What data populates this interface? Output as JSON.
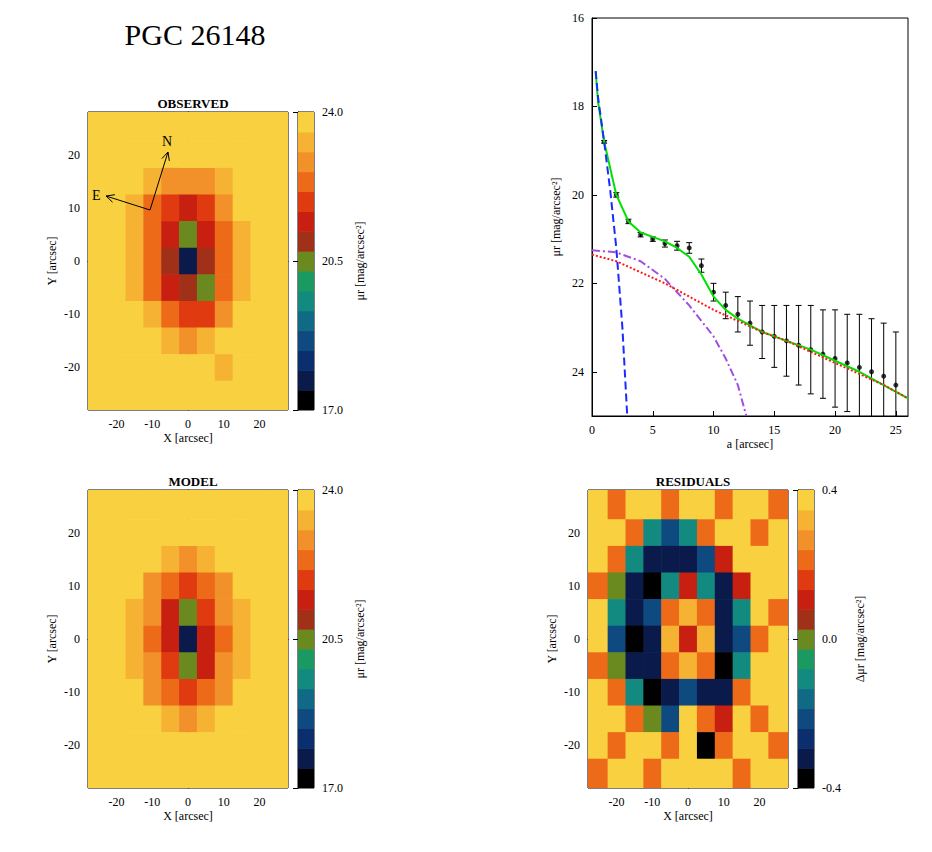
{
  "title": "PGC 26148",
  "chart_data": [
    {
      "type": "heatmap",
      "title": "OBSERVED",
      "xlabel": "X [arcsec]",
      "ylabel": "Y [arcsec]",
      "xlim": [
        -28,
        28
      ],
      "ylim": [
        -28,
        28
      ],
      "xticks": [
        -20,
        -10,
        0,
        10,
        20
      ],
      "yticks": [
        -20,
        -10,
        0,
        10,
        20
      ],
      "x": [
        -25,
        -20,
        -15,
        -10,
        -5,
        0,
        5,
        10,
        15,
        20,
        25
      ],
      "y": [
        25,
        20,
        15,
        10,
        5,
        0,
        -5,
        -10,
        -15,
        -20,
        -25
      ],
      "values": [
        [
          24,
          24,
          24,
          24,
          24,
          24,
          24,
          24,
          24,
          24,
          24
        ],
        [
          24,
          24,
          24,
          24,
          23.8,
          23.7,
          23.8,
          24,
          24,
          24,
          24
        ],
        [
          24,
          24,
          24,
          23.5,
          23,
          22.8,
          23,
          23.5,
          24,
          24,
          24
        ],
        [
          24,
          24,
          23.5,
          22.5,
          21.8,
          21.6,
          22,
          22.8,
          23.6,
          24,
          24
        ],
        [
          24,
          24,
          23.2,
          22.2,
          21.3,
          20.6,
          21.5,
          22.5,
          23.4,
          24,
          24
        ],
        [
          24,
          24,
          23.2,
          22.2,
          21.2,
          17.5,
          21.2,
          22.3,
          23.3,
          24,
          24
        ],
        [
          24,
          24,
          23.4,
          22.5,
          21.5,
          20.8,
          20.7,
          22.2,
          23.4,
          24,
          24
        ],
        [
          24,
          24,
          23.8,
          23.2,
          22.4,
          22,
          21.8,
          22.6,
          23.6,
          24,
          24
        ],
        [
          24,
          24,
          24,
          23.8,
          23.3,
          23,
          23.2,
          23.6,
          24,
          24,
          24
        ],
        [
          24,
          24,
          24,
          24,
          24,
          23.8,
          23.8,
          23.2,
          24,
          24,
          24
        ],
        [
          24,
          24,
          24,
          24,
          24,
          24,
          24,
          24,
          24,
          24,
          24
        ]
      ],
      "colorbar": {
        "label": "μr [mag/arcsec²]",
        "range": [
          17,
          24
        ],
        "ticks": [
          {
            "value": 17,
            "label": "17.0"
          },
          {
            "value": 20.5,
            "label": "20.5"
          },
          {
            "value": 24,
            "label": "24.0"
          }
        ]
      },
      "compass": {
        "north": "N",
        "east": "E"
      }
    },
    {
      "type": "line",
      "xlabel": "a [arcsec]",
      "ylabel": "μr [mag/arcsec²]",
      "xlim": [
        0,
        26
      ],
      "ylim": [
        25,
        16
      ],
      "xticks": [
        0,
        5,
        10,
        15,
        20,
        25
      ],
      "yticks": [
        16,
        18,
        20,
        22,
        24
      ],
      "series": [
        {
          "type": "scatter",
          "color": "#000000",
          "marker": "circle",
          "x": [
            1,
            2,
            3,
            4,
            5,
            6,
            7,
            8,
            9,
            10,
            11,
            12,
            13,
            14,
            15,
            16,
            17,
            18,
            19,
            20,
            21,
            22,
            23,
            24,
            25
          ],
          "values": [
            18.8,
            20.0,
            20.6,
            20.9,
            21.0,
            21.1,
            21.15,
            21.2,
            21.6,
            22.2,
            22.5,
            22.7,
            22.9,
            23.1,
            23.2,
            23.3,
            23.4,
            23.5,
            23.6,
            23.7,
            23.8,
            23.9,
            24.0,
            24.1,
            24.3
          ],
          "errors": [
            0.03,
            0.05,
            0.05,
            0.05,
            0.05,
            0.08,
            0.1,
            0.12,
            0.15,
            0.2,
            0.3,
            0.4,
            0.5,
            0.6,
            0.7,
            0.8,
            0.9,
            1.0,
            1.0,
            1.1,
            1.1,
            1.2,
            1.2,
            1.2,
            1.2
          ]
        },
        {
          "type": "line",
          "color": "#00e000",
          "line_style": "solid",
          "x": [
            0.3,
            0.5,
            1,
            2,
            3,
            4,
            5,
            6,
            7,
            8,
            9,
            10,
            11,
            12,
            13,
            14,
            15,
            16,
            18,
            20,
            22,
            24,
            26
          ],
          "values": [
            17.2,
            17.9,
            18.8,
            20.0,
            20.6,
            20.85,
            20.95,
            21.05,
            21.2,
            21.4,
            21.8,
            22.3,
            22.6,
            22.8,
            22.95,
            23.1,
            23.2,
            23.3,
            23.5,
            23.75,
            24.0,
            24.3,
            24.6
          ]
        },
        {
          "type": "line",
          "color": "#1a2cff",
          "line_style": "dashed",
          "x": [
            0.3,
            0.5,
            1,
            1.5,
            2,
            2.5,
            2.9
          ],
          "values": [
            17.2,
            17.8,
            18.8,
            19.9,
            21.2,
            23.0,
            25.0
          ]
        },
        {
          "type": "line",
          "color": "#a050e0",
          "line_style": "dashdot",
          "x": [
            0,
            2,
            4,
            6,
            8,
            10,
            11,
            12,
            12.7
          ],
          "values": [
            21.25,
            21.3,
            21.5,
            21.9,
            22.5,
            23.2,
            23.7,
            24.3,
            25.0
          ]
        },
        {
          "type": "line",
          "color": "#ff1a1a",
          "line_style": "dotted",
          "x": [
            0,
            2,
            4,
            6,
            8,
            10,
            12,
            14,
            16,
            18,
            20,
            22,
            24,
            26
          ],
          "values": [
            21.35,
            21.5,
            21.75,
            22.0,
            22.3,
            22.6,
            22.85,
            23.1,
            23.3,
            23.55,
            23.8,
            24.05,
            24.3,
            24.6
          ]
        }
      ]
    },
    {
      "type": "heatmap",
      "title": "MODEL",
      "xlabel": "X [arcsec]",
      "ylabel": "Y [arcsec]",
      "xlim": [
        -28,
        28
      ],
      "ylim": [
        -28,
        28
      ],
      "xticks": [
        -20,
        -10,
        0,
        10,
        20
      ],
      "yticks": [
        -20,
        -10,
        0,
        10,
        20
      ],
      "x": [
        -25,
        -20,
        -15,
        -10,
        -5,
        0,
        5,
        10,
        15,
        20,
        25
      ],
      "y": [
        25,
        20,
        15,
        10,
        5,
        0,
        -5,
        -10,
        -15,
        -20,
        -25
      ],
      "values": [
        [
          24,
          24,
          24,
          24,
          24,
          24,
          24,
          24,
          24,
          24,
          24
        ],
        [
          24,
          24,
          24,
          24,
          23.9,
          23.8,
          23.9,
          24,
          24,
          24,
          24
        ],
        [
          24,
          24,
          24,
          23.6,
          23.2,
          23.0,
          23.2,
          23.6,
          24,
          24,
          24
        ],
        [
          24,
          24,
          23.6,
          22.9,
          22.3,
          22.0,
          22.3,
          22.9,
          23.6,
          24,
          24
        ],
        [
          24,
          24,
          23.4,
          22.6,
          21.6,
          20.7,
          21.8,
          22.6,
          23.4,
          24,
          24
        ],
        [
          24,
          24,
          23.3,
          22.5,
          21.4,
          17.5,
          21.4,
          22.5,
          23.3,
          24,
          24
        ],
        [
          24,
          24,
          23.4,
          22.6,
          21.8,
          20.7,
          21.6,
          22.6,
          23.4,
          24,
          24
        ],
        [
          24,
          24,
          23.6,
          22.9,
          22.3,
          22.0,
          22.3,
          22.9,
          23.6,
          24,
          24
        ],
        [
          24,
          24,
          24,
          23.6,
          23.2,
          23.0,
          23.2,
          23.6,
          24,
          24,
          24
        ],
        [
          24,
          24,
          24,
          24,
          23.9,
          23.8,
          23.9,
          24,
          24,
          24,
          24
        ],
        [
          24,
          24,
          24,
          24,
          24,
          24,
          24,
          24,
          24,
          24,
          24
        ]
      ],
      "colorbar": {
        "label": "μr [mag/arcsec²]",
        "range": [
          17,
          24
        ],
        "ticks": [
          {
            "value": 17,
            "label": "17.0"
          },
          {
            "value": 20.5,
            "label": "20.5"
          },
          {
            "value": 24,
            "label": "24.0"
          }
        ]
      }
    },
    {
      "type": "heatmap",
      "title": "RESIDUALS",
      "xlabel": "X [arcsec]",
      "ylabel": "Y [arcsec]",
      "xlim": [
        -28,
        28
      ],
      "ylim": [
        -28,
        28
      ],
      "xticks": [
        -20,
        -10,
        0,
        10,
        20
      ],
      "yticks": [
        -20,
        -10,
        0,
        10,
        20
      ],
      "x": [
        -25,
        -20,
        -15,
        -10,
        -5,
        0,
        5,
        10,
        15,
        20,
        25
      ],
      "y": [
        25,
        20,
        15,
        10,
        5,
        0,
        -5,
        -10,
        -15,
        -20,
        -25
      ],
      "values": [
        [
          0.35,
          0.2,
          0.35,
          0.35,
          0.2,
          0.35,
          0.35,
          0.2,
          0.35,
          0.35,
          0.2
        ],
        [
          0.35,
          0.35,
          0.2,
          -0.1,
          -0.2,
          -0.1,
          0.2,
          0.35,
          0.35,
          0.2,
          0.35
        ],
        [
          0.35,
          0.2,
          -0.1,
          -0.3,
          -0.3,
          -0.3,
          -0.2,
          0.1,
          0.35,
          0.35,
          0.35
        ],
        [
          0.2,
          0.0,
          -0.3,
          -0.4,
          -0.1,
          0.1,
          -0.1,
          -0.3,
          0.1,
          0.35,
          0.35
        ],
        [
          0.35,
          -0.1,
          -0.3,
          -0.2,
          0.2,
          0.3,
          0.2,
          -0.3,
          -0.1,
          0.35,
          0.2
        ],
        [
          0.35,
          -0.2,
          -0.4,
          -0.3,
          0.3,
          0.1,
          0.3,
          -0.3,
          -0.2,
          0.2,
          0.35
        ],
        [
          0.2,
          0.0,
          -0.3,
          -0.3,
          0.2,
          0.3,
          0.2,
          -0.4,
          -0.1,
          0.35,
          0.35
        ],
        [
          0.35,
          0.2,
          -0.1,
          -0.4,
          -0.3,
          -0.2,
          -0.3,
          -0.3,
          0.2,
          0.35,
          0.35
        ],
        [
          0.35,
          0.35,
          0.2,
          0.0,
          -0.2,
          0.35,
          0.2,
          0.1,
          0.35,
          0.2,
          0.35
        ],
        [
          0.35,
          0.2,
          0.35,
          0.35,
          0.2,
          0.35,
          -0.4,
          0.2,
          0.35,
          0.35,
          0.2
        ],
        [
          0.2,
          0.35,
          0.35,
          0.2,
          0.35,
          0.35,
          0.35,
          0.35,
          0.2,
          0.35,
          0.35
        ]
      ],
      "colorbar": {
        "label": "Δμr [mag/arcsec²]",
        "range": [
          -0.4,
          0.4
        ],
        "ticks": [
          {
            "value": -0.4,
            "label": "-0.4"
          },
          {
            "value": 0,
            "label": "0.0"
          },
          {
            "value": 0.4,
            "label": "0.4"
          }
        ]
      }
    }
  ]
}
